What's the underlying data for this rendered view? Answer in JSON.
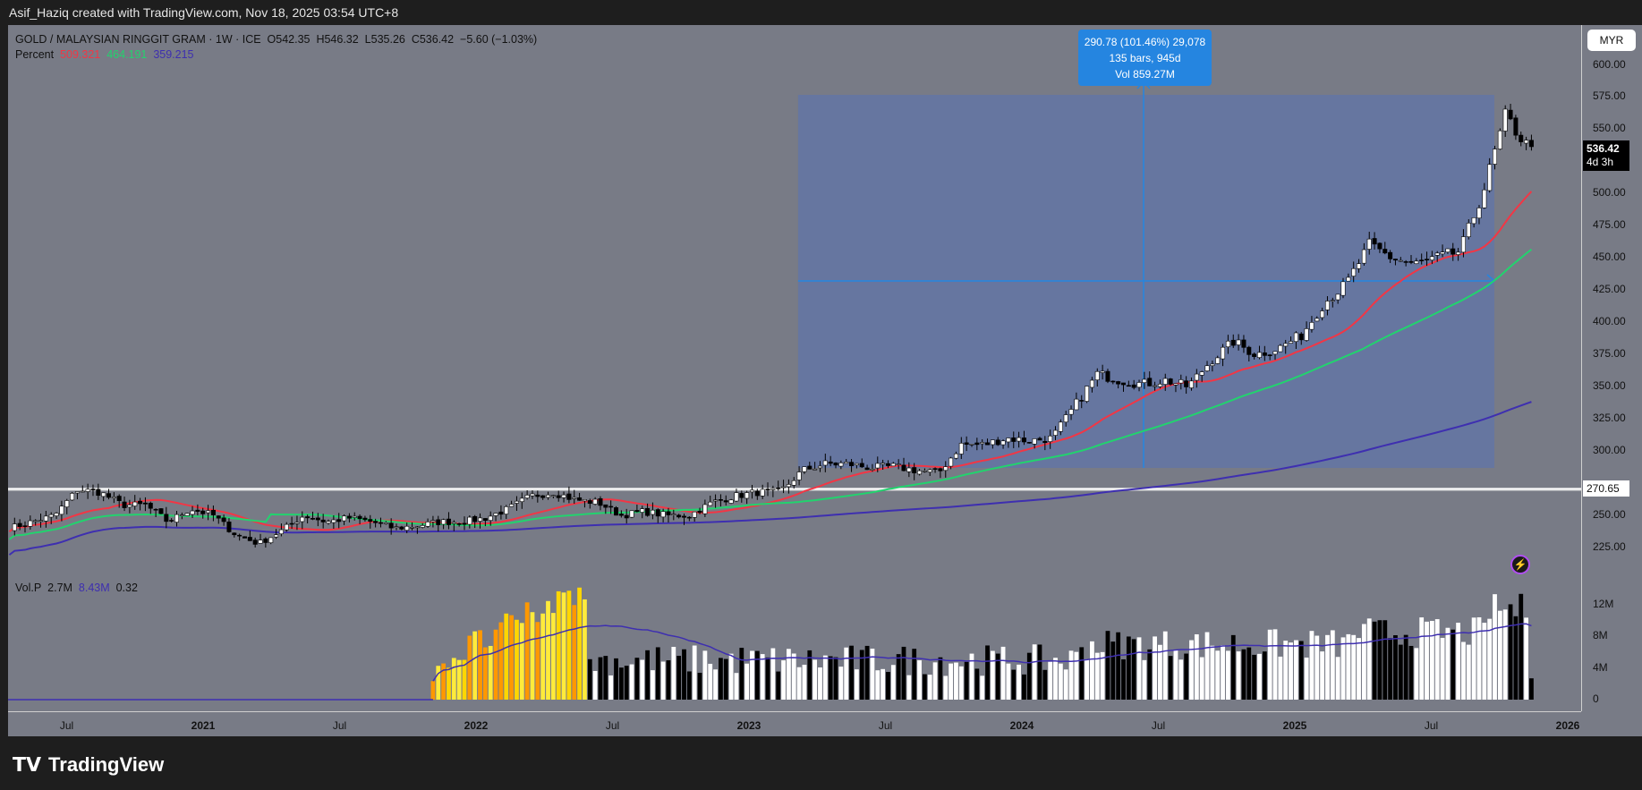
{
  "header": {
    "credit": "Asif_Haziq created with TradingView.com, Nov 18, 2025 03:54 UTC+8"
  },
  "legend": {
    "symbol": "GOLD / MALAYSIAN RINGGIT GRAM · 1W · ICE",
    "open": "O542.35",
    "high": "H546.32",
    "low": "L535.26",
    "close": "C536.42",
    "change": "−5.60 (−1.03%)",
    "ma_label": "Percent",
    "ma1": "509.321",
    "ma2": "464.191",
    "ma3": "359.215"
  },
  "volume_legend": {
    "label": "Vol.P",
    "v1": "2.7M",
    "v2": "8.43M",
    "v3": "0.32"
  },
  "axis": {
    "currency": "MYR",
    "last_price": "536.42",
    "countdown": "4d 3h",
    "level_label": "270.65"
  },
  "measure": {
    "line1": "290.78 (101.46%) 29,078",
    "line2": "135 bars, 945d",
    "line3": "Vol 859.27M"
  },
  "brand": "TradingView",
  "colors": {
    "bg": "#787b86",
    "ma1": "#f23645",
    "ma2": "#22d36e",
    "ma3": "#3e2fb0",
    "measure": "#2585e0"
  },
  "chart_data": {
    "type": "candlestick",
    "interval": "1W",
    "price_ticks": [
      600,
      575,
      550,
      525,
      500,
      475,
      450,
      425,
      400,
      375,
      350,
      325,
      300,
      275,
      250,
      225
    ],
    "price_tick_labels": [
      "600.00",
      "575.00",
      "550.00",
      "",
      "500.00",
      "475.00",
      "450.00",
      "425.00",
      "400.00",
      "375.00",
      "350.00",
      "325.00",
      "300.00",
      "",
      "250.00",
      "225.00"
    ],
    "volume_ticks": [
      "12M",
      "8M",
      "4M",
      "0"
    ],
    "x_ticks": [
      "Jul",
      "2021",
      "Jul",
      "2022",
      "Jul",
      "2023",
      "Jul",
      "2024",
      "Jul",
      "2025",
      "Jul",
      "2026"
    ],
    "monthly_close_approx": {
      "start": "2020-04",
      "values": [
        240,
        245,
        250,
        270,
        268,
        258,
        258,
        245,
        255,
        250,
        235,
        228,
        238,
        250,
        245,
        248,
        245,
        240,
        242,
        245,
        245,
        248,
        255,
        265,
        268,
        262,
        260,
        250,
        253,
        250,
        250,
        260,
        265,
        268,
        268,
        285,
        290,
        290,
        287,
        288,
        285,
        283,
        305,
        305,
        310,
        308,
        310,
        335,
        360,
        355,
        352,
        355,
        350,
        370,
        385,
        375,
        380,
        390,
        415,
        430,
        460,
        450,
        445,
        450,
        455,
        500,
        560,
        536
      ]
    },
    "volume_start": "2021-11",
    "horizontal_level": 270.65
  }
}
